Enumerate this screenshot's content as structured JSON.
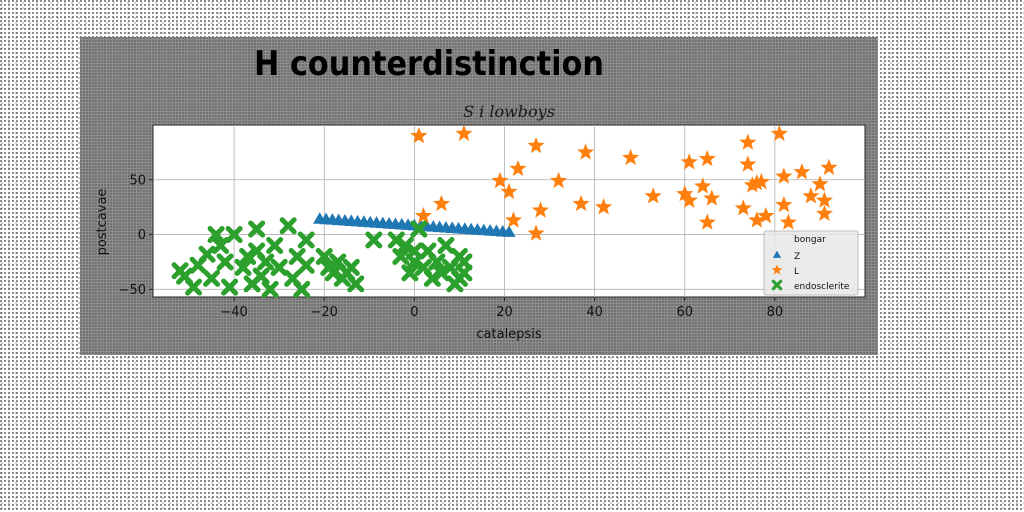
{
  "chart_data": {
    "type": "scatter",
    "title": "H counterdistinction",
    "subtitle": "S i lowboys",
    "xlabel": "catalepsis",
    "ylabel": "postcavae",
    "xlim": [
      -58,
      100
    ],
    "ylim": [
      -57,
      100
    ],
    "x_ticks": [
      -40,
      -20,
      0,
      20,
      40,
      60,
      80
    ],
    "y_ticks": [
      -50,
      0,
      50
    ],
    "grid": true,
    "legend": {
      "title": "bongar",
      "placement": "lower-right"
    },
    "colors": {
      "Z": "#1f77b4",
      "L": "#ff7f0e",
      "endosclerite": "#2ca02c"
    },
    "series": [
      {
        "name": "Z",
        "marker": "triangle",
        "x": [
          -21,
          -19.6,
          -18.2,
          -16.8,
          -15.4,
          -14,
          -12.6,
          -11.2,
          -9.8,
          -8.4,
          -7,
          -5.6,
          -4.2,
          -2.8,
          -1.4,
          0,
          1.4,
          2.8,
          4.2,
          5.6,
          7,
          8.4,
          9.8,
          11.2,
          12.6,
          14,
          15.4,
          16.8,
          18.2,
          19.6,
          21
        ],
        "y": [
          14,
          13.6,
          13.2,
          12.8,
          12.4,
          12,
          11.6,
          11.2,
          10.8,
          10.4,
          10,
          9.6,
          9.2,
          8.8,
          8.4,
          8,
          7.6,
          7.2,
          6.8,
          6.4,
          6,
          5.6,
          5.2,
          4.8,
          4.4,
          4,
          3.6,
          3.2,
          2.8,
          2.4,
          2
        ]
      },
      {
        "name": "L",
        "marker": "star",
        "x": [
          1,
          11,
          2,
          6,
          19,
          21,
          22,
          23,
          27,
          28,
          27,
          32,
          37,
          38,
          42,
          48,
          53,
          60,
          61,
          61,
          64,
          65,
          65,
          66,
          73,
          74,
          74,
          75,
          76,
          76,
          77,
          78,
          81,
          82,
          82,
          83,
          86,
          88,
          90,
          91,
          91,
          92
        ],
        "y": [
          90,
          92,
          17,
          28,
          49,
          39,
          13,
          60,
          81,
          22,
          1,
          49,
          28,
          75,
          25,
          70,
          35,
          37,
          31,
          66,
          44,
          11,
          69,
          33,
          24,
          84,
          64,
          45,
          47,
          13,
          48,
          17,
          92,
          27,
          53,
          11,
          57,
          35,
          46,
          19,
          31,
          61
        ]
      },
      {
        "name": "endosclerite",
        "marker": "x",
        "x": [
          -52,
          -51,
          -49,
          -48,
          -46,
          -45,
          -44,
          -43,
          -42,
          -41,
          -40,
          -38,
          -37,
          -36,
          -35,
          -35,
          -34,
          -33,
          -32,
          -31,
          -30,
          -28,
          -27,
          -26,
          -25,
          -24,
          -24,
          -20,
          -19,
          -18,
          -17,
          -16,
          -15,
          -14,
          -13,
          -9,
          -4,
          -3,
          -2,
          -1,
          0,
          0,
          1,
          2,
          3,
          4,
          5,
          6,
          7,
          8,
          9,
          10,
          10,
          11,
          11
        ],
        "y": [
          -33,
          -38,
          -48,
          -28,
          -18,
          -40,
          0,
          -10,
          -25,
          -48,
          0,
          -30,
          -20,
          -45,
          5,
          -15,
          -38,
          -25,
          -50,
          -10,
          -30,
          8,
          -40,
          -20,
          -50,
          -28,
          -5,
          -20,
          -30,
          -35,
          -25,
          -40,
          -35,
          -30,
          -45,
          -5,
          -5,
          -20,
          -10,
          -35,
          -15,
          -25,
          5,
          -30,
          -15,
          -40,
          -25,
          -35,
          -10,
          -30,
          -45,
          -20,
          -40,
          -25,
          -35
        ]
      }
    ]
  }
}
